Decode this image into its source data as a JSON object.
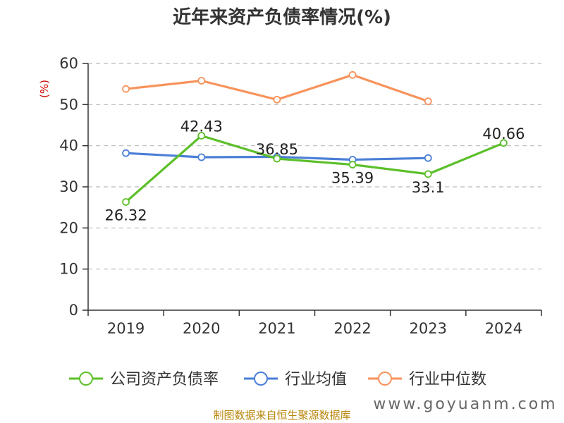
{
  "chart_data": {
    "type": "line",
    "title": "近年来资产负债率情况(%)",
    "unit_label": "(%)",
    "categories": [
      "2019",
      "2020",
      "2021",
      "2022",
      "2023",
      "2024"
    ],
    "ylim": [
      0,
      60
    ],
    "yticks": [
      "0",
      "10",
      "20",
      "30",
      "40",
      "50",
      "60"
    ],
    "grid": true,
    "legend_position": "bottom",
    "series": [
      {
        "name": "公司资产负债率",
        "color": "#5cbf2a",
        "values": [
          26.32,
          42.43,
          36.85,
          35.39,
          33.1,
          40.66
        ],
        "labels": [
          "26.32",
          "42.43",
          "36.85",
          "35.39",
          "33.1",
          "40.66"
        ]
      },
      {
        "name": "行业均值",
        "color": "#4a7fd6",
        "values": [
          38.2,
          37.2,
          37.3,
          36.6,
          37.0,
          null
        ]
      },
      {
        "name": "行业中位数",
        "color": "#f7935c",
        "values": [
          53.8,
          55.8,
          51.2,
          57.2,
          50.8,
          null
        ]
      }
    ]
  },
  "footer": {
    "source": "制图数据来自恒生聚源数据库",
    "watermark": "www.goyuanm.com"
  }
}
